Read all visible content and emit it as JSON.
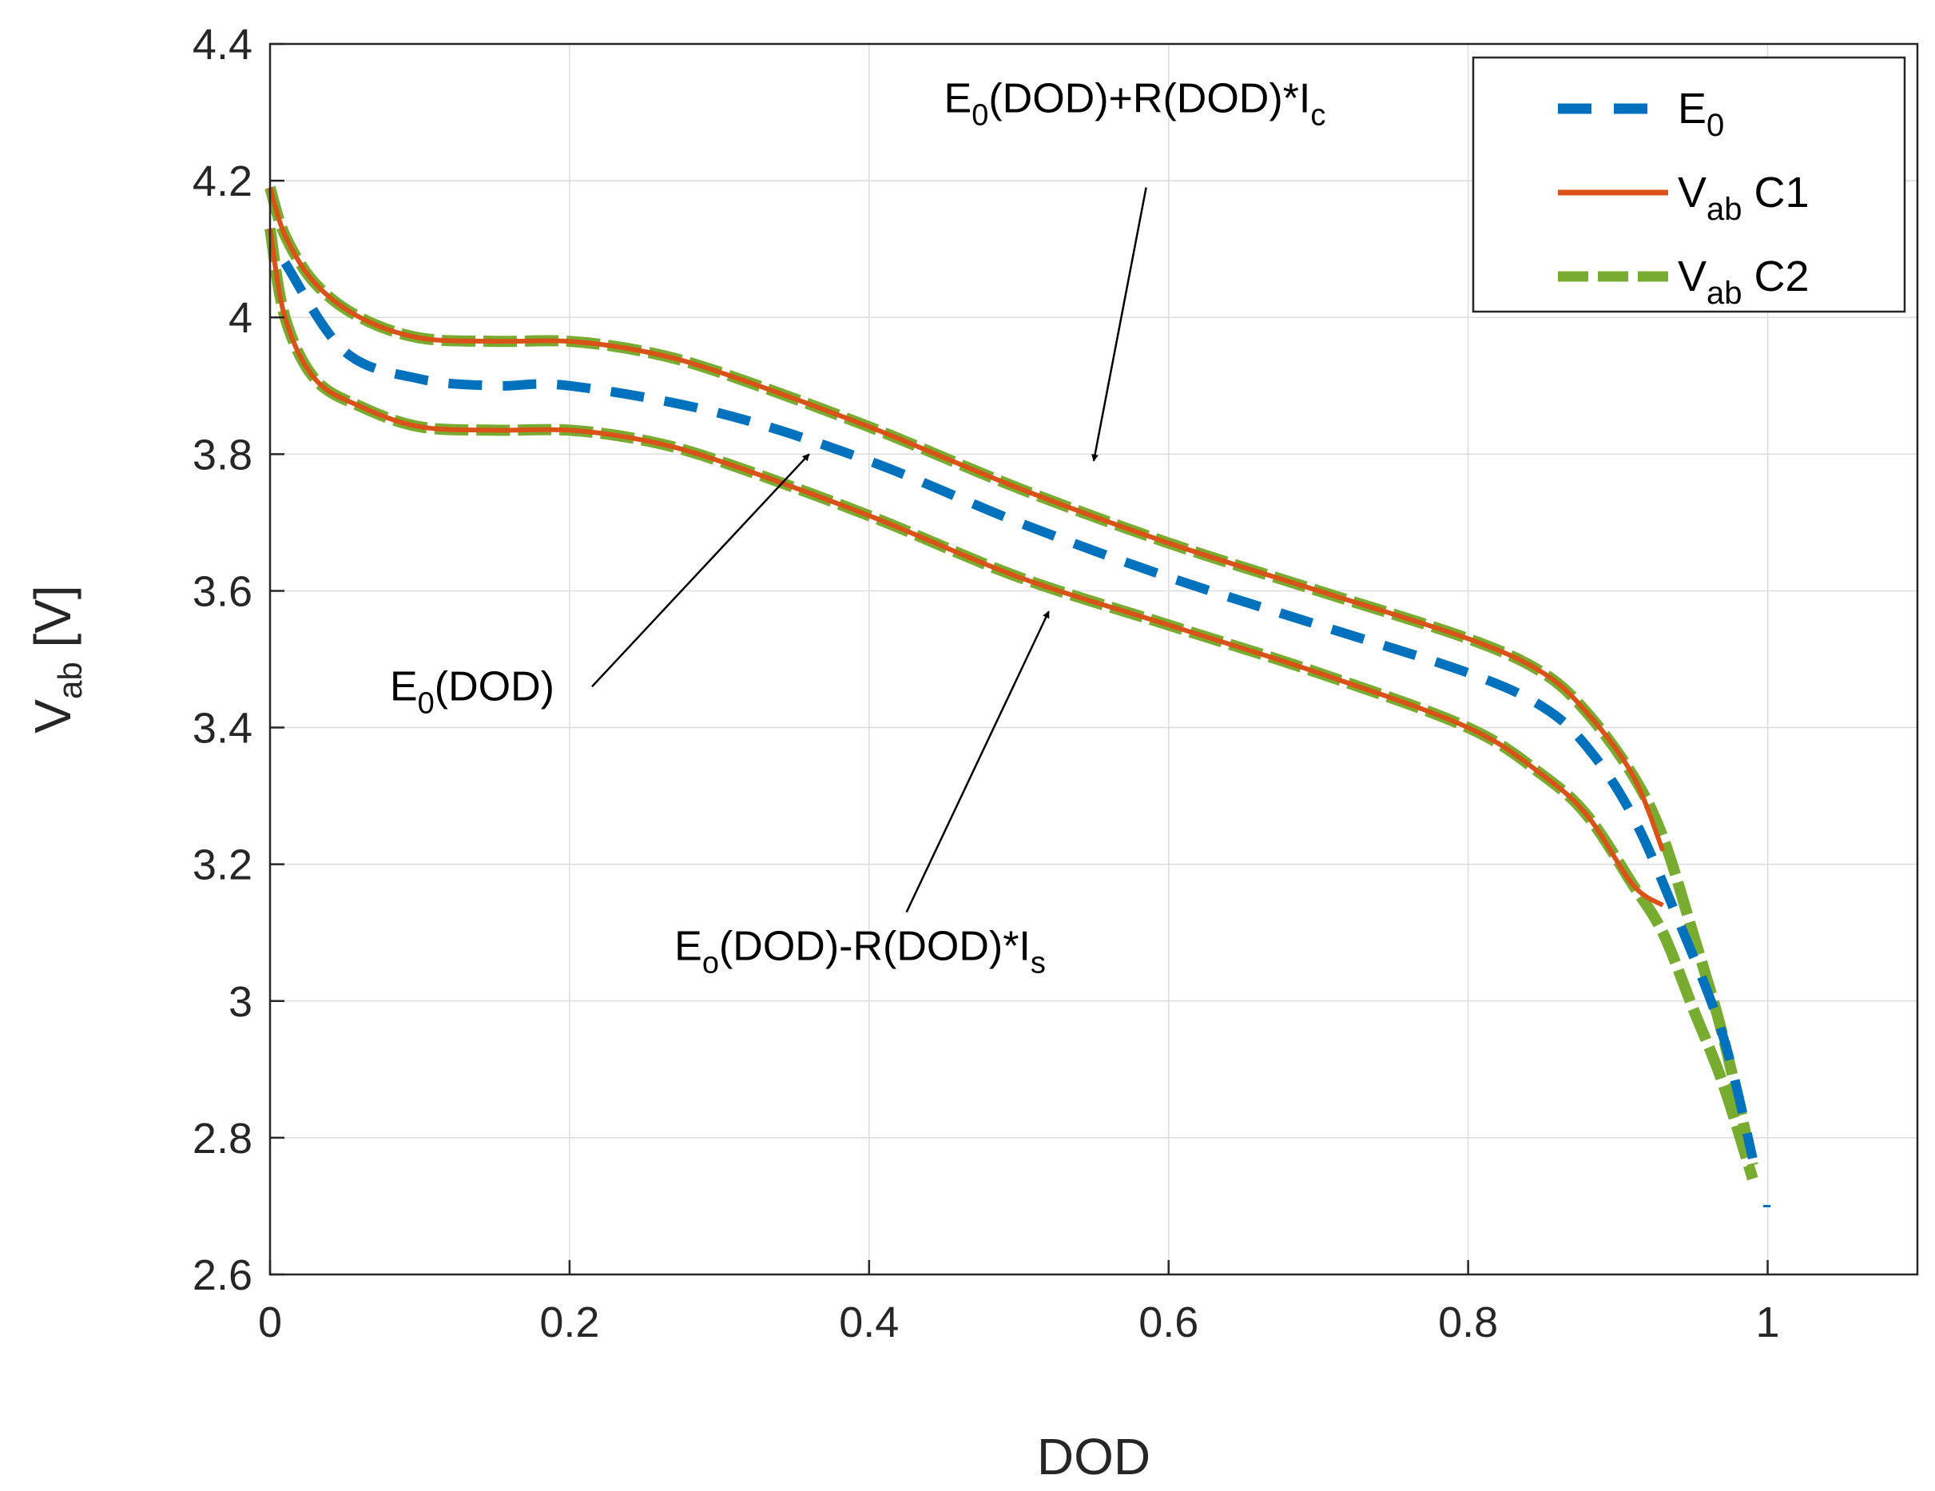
{
  "chart_data": {
    "type": "line",
    "title": "",
    "xlabel": "DOD",
    "ylabel": {
      "main": "V",
      "sub": "ab",
      "unit": " [V]"
    },
    "xlim": [
      0,
      1.1
    ],
    "ylim": [
      2.6,
      4.4
    ],
    "grid": true,
    "legend_position": "top-right",
    "x_ticks": [
      {
        "v": 0,
        "label": "0"
      },
      {
        "v": 0.2,
        "label": "0.2"
      },
      {
        "v": 0.4,
        "label": "0.4"
      },
      {
        "v": 0.6,
        "label": "0.6"
      },
      {
        "v": 0.8,
        "label": "0.8"
      },
      {
        "v": 1,
        "label": "1"
      }
    ],
    "y_ticks": [
      {
        "v": 2.6,
        "label": "2.6"
      },
      {
        "v": 2.8,
        "label": "2.8"
      },
      {
        "v": 3.0,
        "label": "3"
      },
      {
        "v": 3.2,
        "label": "3.2"
      },
      {
        "v": 3.4,
        "label": "3.4"
      },
      {
        "v": 3.6,
        "label": "3.6"
      },
      {
        "v": 3.8,
        "label": "3.8"
      },
      {
        "v": 4.0,
        "label": "4"
      },
      {
        "v": 4.2,
        "label": "4.2"
      },
      {
        "v": 4.4,
        "label": "4.4"
      }
    ],
    "series": [
      {
        "name": "E0",
        "legend": {
          "main": "E",
          "sub": "0",
          "suffix": ""
        },
        "color": "#0072BD",
        "style": "dashed",
        "x": [
          0.01,
          0.05,
          0.1,
          0.15,
          0.2,
          0.3,
          0.4,
          0.5,
          0.6,
          0.7,
          0.8,
          0.85,
          0.88,
          0.91,
          0.94,
          0.97,
          0.99
        ],
        "y": [
          4.08,
          3.95,
          3.91,
          3.9,
          3.9,
          3.86,
          3.79,
          3.7,
          3.62,
          3.55,
          3.48,
          3.43,
          3.37,
          3.27,
          3.12,
          2.95,
          2.77
        ]
      },
      {
        "name": "Vab C1 charge",
        "legend": {
          "main": "V",
          "sub": "ab",
          "suffix": " C1"
        },
        "color": "#D95319",
        "style": "solid",
        "x": [
          0.0,
          0.01,
          0.03,
          0.06,
          0.1,
          0.15,
          0.2,
          0.25,
          0.3,
          0.4,
          0.5,
          0.6,
          0.7,
          0.8,
          0.85,
          0.88,
          0.91,
          0.93
        ],
        "y": [
          4.19,
          4.12,
          4.05,
          4.0,
          3.97,
          3.965,
          3.965,
          3.95,
          3.92,
          3.84,
          3.75,
          3.67,
          3.6,
          3.53,
          3.48,
          3.42,
          3.33,
          3.22
        ]
      },
      {
        "name": "Vab C1 discharge",
        "color": "#D95319",
        "style": "solid",
        "x": [
          0.0,
          0.01,
          0.03,
          0.06,
          0.1,
          0.15,
          0.2,
          0.25,
          0.3,
          0.4,
          0.5,
          0.6,
          0.7,
          0.8,
          0.85,
          0.88,
          0.91,
          0.93
        ],
        "y": [
          4.13,
          4.0,
          3.91,
          3.87,
          3.84,
          3.835,
          3.835,
          3.82,
          3.79,
          3.71,
          3.62,
          3.55,
          3.48,
          3.4,
          3.33,
          3.27,
          3.17,
          3.14
        ]
      },
      {
        "name": "Vab C2 charge",
        "legend": {
          "main": "V",
          "sub": "ab",
          "suffix": " C2"
        },
        "color": "#77AC30",
        "style": "dashed",
        "x": [
          0.0,
          0.01,
          0.03,
          0.06,
          0.1,
          0.15,
          0.2,
          0.25,
          0.3,
          0.4,
          0.5,
          0.6,
          0.7,
          0.8,
          0.85,
          0.88,
          0.91,
          0.93,
          0.95,
          0.97,
          0.99
        ],
        "y": [
          4.19,
          4.12,
          4.05,
          4.0,
          3.97,
          3.965,
          3.965,
          3.95,
          3.92,
          3.84,
          3.75,
          3.67,
          3.6,
          3.53,
          3.48,
          3.42,
          3.33,
          3.24,
          3.1,
          2.95,
          2.76
        ]
      },
      {
        "name": "Vab C2 discharge",
        "color": "#77AC30",
        "style": "dashed",
        "x": [
          0.0,
          0.01,
          0.03,
          0.06,
          0.1,
          0.15,
          0.2,
          0.25,
          0.3,
          0.4,
          0.5,
          0.6,
          0.7,
          0.8,
          0.85,
          0.88,
          0.91,
          0.93,
          0.95,
          0.97,
          0.99
        ],
        "y": [
          4.13,
          4.0,
          3.91,
          3.87,
          3.84,
          3.835,
          3.835,
          3.82,
          3.79,
          3.71,
          3.62,
          3.55,
          3.48,
          3.4,
          3.33,
          3.27,
          3.17,
          3.1,
          2.99,
          2.88,
          2.74
        ]
      }
    ],
    "annotations": [
      {
        "name": "annotation-charge",
        "parts": [
          [
            "E",
            ""
          ],
          [
            "0",
            "sub"
          ],
          [
            "(DOD)+R(DOD)*I",
            ""
          ],
          [
            "c",
            "sub"
          ]
        ],
        "text_at": [
          0.45,
          4.3
        ],
        "arrow_from": [
          0.585,
          4.19
        ],
        "arrow_to": [
          0.55,
          3.79
        ]
      },
      {
        "name": "annotation-ocv",
        "parts": [
          [
            "E",
            ""
          ],
          [
            "0",
            "sub"
          ],
          [
            "(DOD)",
            ""
          ]
        ],
        "text_at": [
          0.08,
          3.44
        ],
        "arrow_from": [
          0.215,
          3.46
        ],
        "arrow_to": [
          0.36,
          3.8
        ]
      },
      {
        "name": "annotation-discharge",
        "parts": [
          [
            "E",
            ""
          ],
          [
            "o",
            "sub"
          ],
          [
            "(DOD)-R(DOD)*I",
            ""
          ],
          [
            "s",
            "sub"
          ]
        ],
        "text_at": [
          0.27,
          3.06
        ],
        "arrow_from": [
          0.425,
          3.13
        ],
        "arrow_to": [
          0.52,
          3.57
        ]
      }
    ]
  }
}
